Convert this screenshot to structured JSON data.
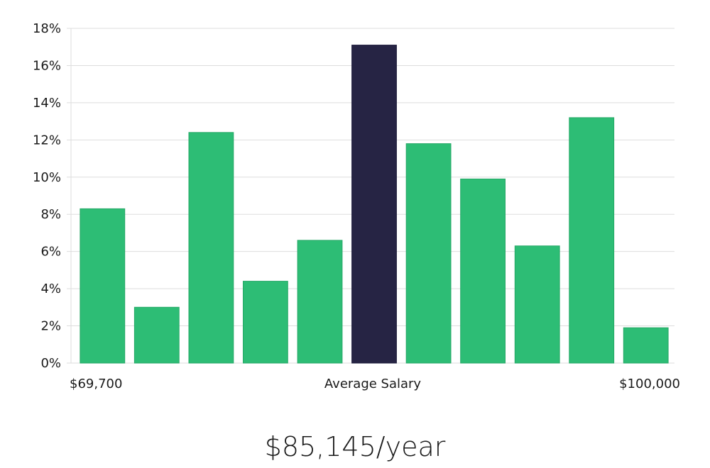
{
  "chart_data": {
    "type": "bar",
    "categories": [
      "1",
      "2",
      "3",
      "4",
      "5",
      "6",
      "7",
      "8",
      "9",
      "10",
      "11"
    ],
    "values": [
      8.3,
      3.0,
      12.4,
      4.4,
      6.6,
      17.1,
      11.8,
      9.9,
      6.3,
      13.2,
      1.9
    ],
    "highlight_index": 5,
    "ylim": [
      0,
      18
    ],
    "yticks": [
      0,
      2,
      4,
      6,
      8,
      10,
      12,
      14,
      16,
      18
    ],
    "ytick_labels": [
      "0%",
      "2%",
      "4%",
      "6%",
      "8%",
      "10%",
      "12%",
      "14%",
      "16%",
      "18%"
    ],
    "x_labels": {
      "left": "$69,700",
      "center": "Average Salary",
      "right": "$100,000"
    },
    "grid": true,
    "colors": {
      "bar": "#2dbd75",
      "highlight": "#262444",
      "grid": "#dddddd"
    }
  },
  "salary": {
    "value": "$85,145/year"
  }
}
